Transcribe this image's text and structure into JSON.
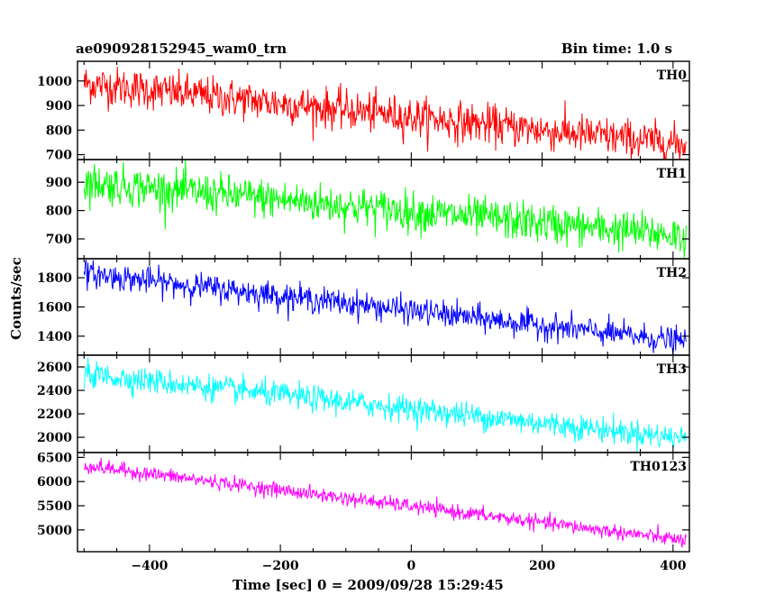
{
  "header": {
    "title": "ae090928152945_wam0_trn",
    "bin_time": "Bin time: 1.0 s"
  },
  "chart_data": {
    "type": "line",
    "xlabel": "Time [sec] 0 = 2009/09/28 15:29:45",
    "ylabel": "Counts/sec",
    "xlim": [
      -510,
      425
    ],
    "x_ticks": [
      -400,
      -200,
      0,
      200,
      400
    ],
    "x_range_data": [
      -500,
      420
    ],
    "bin_time_s": 1.0,
    "series": [
      {
        "name": "TH0",
        "color": "#ff0000",
        "ylim": [
          680,
          1080
        ],
        "y_ticks": [
          700,
          800,
          900,
          1000
        ],
        "trend_start": 990,
        "trend_end": 740,
        "noise": 40
      },
      {
        "name": "TH1",
        "color": "#00ff00",
        "ylim": [
          630,
          980
        ],
        "y_ticks": [
          700,
          800,
          900
        ],
        "trend_start": 900,
        "trend_end": 710,
        "noise": 35
      },
      {
        "name": "TH2",
        "color": "#0000ff",
        "ylim": [
          1270,
          1930
        ],
        "y_ticks": [
          1400,
          1600,
          1800
        ],
        "trend_start": 1830,
        "trend_end": 1360,
        "noise": 45
      },
      {
        "name": "TH3",
        "color": "#00ffff",
        "ylim": [
          1870,
          2700
        ],
        "y_ticks": [
          2000,
          2200,
          2400,
          2600
        ],
        "trend_start": 2540,
        "trend_end": 1990,
        "noise": 55
      },
      {
        "name": "TH0123",
        "color": "#ff00ff",
        "ylim": [
          4550,
          6600
        ],
        "y_ticks": [
          5000,
          5500,
          6000,
          6500
        ],
        "trend_start": 6330,
        "trend_end": 4780,
        "noise": 75
      }
    ]
  }
}
